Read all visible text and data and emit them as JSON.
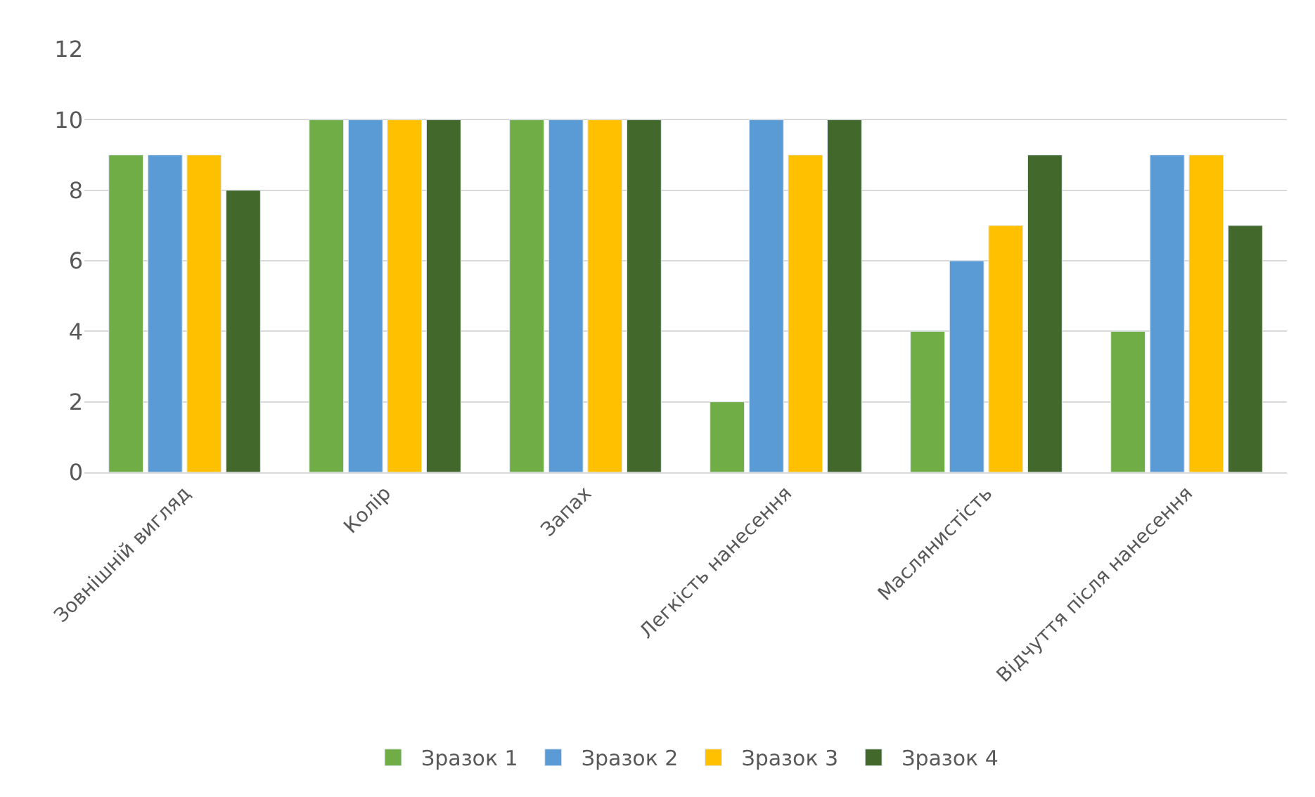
{
  "chart_data": {
    "type": "bar",
    "categories": [
      "Зовнішній вигляд",
      "Колір",
      "Запах",
      "Легкість нанесення",
      "Маслянистість",
      "Відчуття після нанесення"
    ],
    "series": [
      {
        "name": "Зразок 1",
        "color": "#70ad47",
        "values": [
          9,
          10,
          10,
          2,
          4,
          4
        ]
      },
      {
        "name": "Зразок 2",
        "color": "#5b9bd5",
        "values": [
          9,
          10,
          10,
          10,
          6,
          9
        ]
      },
      {
        "name": "Зразок 3",
        "color": "#ffc000",
        "values": [
          9,
          10,
          10,
          9,
          7,
          9
        ]
      },
      {
        "name": "Зразок 4",
        "color": "#43682b",
        "values": [
          8,
          10,
          10,
          10,
          9,
          7
        ]
      }
    ],
    "ylim": [
      0,
      12
    ],
    "yticks": [
      0,
      2,
      4,
      6,
      8,
      10,
      12
    ],
    "grid": "y",
    "legend": "bottom"
  }
}
